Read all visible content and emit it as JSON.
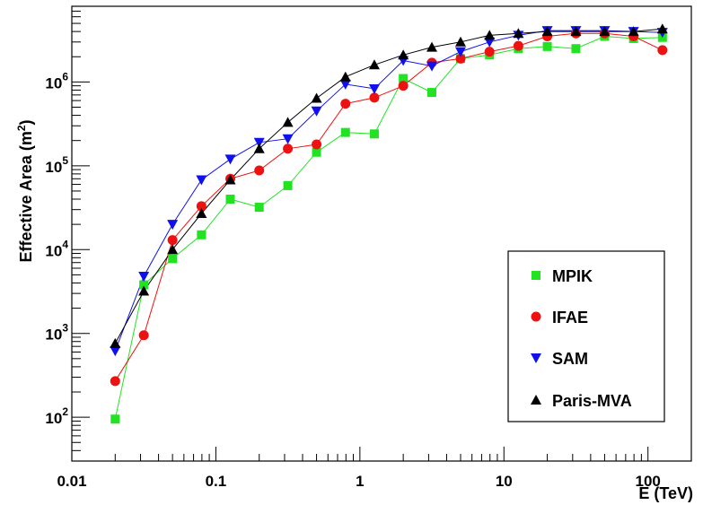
{
  "chart_data": {
    "type": "scatter",
    "title": "",
    "xlabel": "E (TeV)",
    "ylabel_main": "Effective Area (m",
    "ylabel_sup": "2",
    "ylabel_close": ")",
    "xscale": "log",
    "yscale": "log",
    "xlim": [
      0.01,
      200
    ],
    "ylim": [
      30,
      8000000
    ],
    "grid": false,
    "legend_position": "bottom-right",
    "x_tick_labels": [
      {
        "value": 0.01,
        "label": "0.01"
      },
      {
        "value": 0.1,
        "label": "0.1"
      },
      {
        "value": 1,
        "label": "1"
      },
      {
        "value": 10,
        "label": "10"
      },
      {
        "value": 100,
        "label": "100"
      }
    ],
    "y_tick_labels": [
      {
        "value": 100,
        "base": "10",
        "exp": "2"
      },
      {
        "value": 1000,
        "base": "10",
        "exp": "3"
      },
      {
        "value": 10000,
        "base": "10",
        "exp": "4"
      },
      {
        "value": 100000,
        "base": "10",
        "exp": "5"
      },
      {
        "value": 1000000,
        "base": "10",
        "exp": "6"
      }
    ],
    "series": [
      {
        "name": "MPIK",
        "color": "#22e322",
        "marker": "square",
        "points": [
          [
            0.02,
            95
          ],
          [
            0.0316,
            3800
          ],
          [
            0.05,
            7800
          ],
          [
            0.0794,
            15000
          ],
          [
            0.126,
            40000
          ],
          [
            0.2,
            32000
          ],
          [
            0.316,
            58000
          ],
          [
            0.5,
            145000
          ],
          [
            0.794,
            250000
          ],
          [
            1.26,
            240000
          ],
          [
            2.0,
            1100000
          ],
          [
            3.16,
            750000
          ],
          [
            5.0,
            1900000
          ],
          [
            7.94,
            2100000
          ],
          [
            12.6,
            2500000
          ],
          [
            20.0,
            2650000
          ],
          [
            31.6,
            2500000
          ],
          [
            50.0,
            3500000
          ],
          [
            79.4,
            3300000
          ],
          [
            126,
            3400000
          ]
        ]
      },
      {
        "name": "IFAE",
        "color": "#ee1111",
        "marker": "circle",
        "points": [
          [
            0.02,
            270
          ],
          [
            0.0316,
            950
          ],
          [
            0.05,
            13000
          ],
          [
            0.0794,
            33000
          ],
          [
            0.126,
            70000
          ],
          [
            0.2,
            88000
          ],
          [
            0.316,
            160000
          ],
          [
            0.5,
            180000
          ],
          [
            0.794,
            550000
          ],
          [
            1.26,
            650000
          ],
          [
            2.0,
            900000
          ],
          [
            3.16,
            1700000
          ],
          [
            5.0,
            1900000
          ],
          [
            7.94,
            2300000
          ],
          [
            12.6,
            2700000
          ],
          [
            20.0,
            3500000
          ],
          [
            31.6,
            3800000
          ],
          [
            50.0,
            3800000
          ],
          [
            79.4,
            3500000
          ],
          [
            126,
            2400000
          ]
        ]
      },
      {
        "name": "SAM",
        "color": "#1010ee",
        "marker": "triangle-down",
        "points": [
          [
            0.02,
            620
          ],
          [
            0.0316,
            4800
          ],
          [
            0.05,
            20000
          ],
          [
            0.0794,
            68000
          ],
          [
            0.126,
            120000
          ],
          [
            0.2,
            190000
          ],
          [
            0.316,
            210000
          ],
          [
            0.5,
            450000
          ],
          [
            0.794,
            940000
          ],
          [
            1.26,
            830000
          ],
          [
            2.0,
            1800000
          ],
          [
            3.16,
            1550000
          ],
          [
            5.0,
            2300000
          ],
          [
            7.94,
            3000000
          ],
          [
            12.6,
            3600000
          ],
          [
            20.0,
            4100000
          ],
          [
            31.6,
            4100000
          ],
          [
            50.0,
            4100000
          ],
          [
            79.4,
            4000000
          ],
          [
            126,
            3900000
          ]
        ]
      },
      {
        "name": "Paris-MVA",
        "color": "#000000",
        "marker": "triangle-up",
        "points": [
          [
            0.02,
            760
          ],
          [
            0.0316,
            3200
          ],
          [
            0.05,
            10000
          ],
          [
            0.0794,
            27000
          ],
          [
            0.126,
            68000
          ],
          [
            0.2,
            160000
          ],
          [
            0.316,
            330000
          ],
          [
            0.5,
            640000
          ],
          [
            0.794,
            1150000
          ],
          [
            1.26,
            1600000
          ],
          [
            2.0,
            2100000
          ],
          [
            3.16,
            2600000
          ],
          [
            5.0,
            3000000
          ],
          [
            7.94,
            3600000
          ],
          [
            12.6,
            3800000
          ],
          [
            20.0,
            4000000
          ],
          [
            31.6,
            4000000
          ],
          [
            50.0,
            4000000
          ],
          [
            79.4,
            4000000
          ],
          [
            126,
            4300000
          ]
        ]
      }
    ]
  }
}
